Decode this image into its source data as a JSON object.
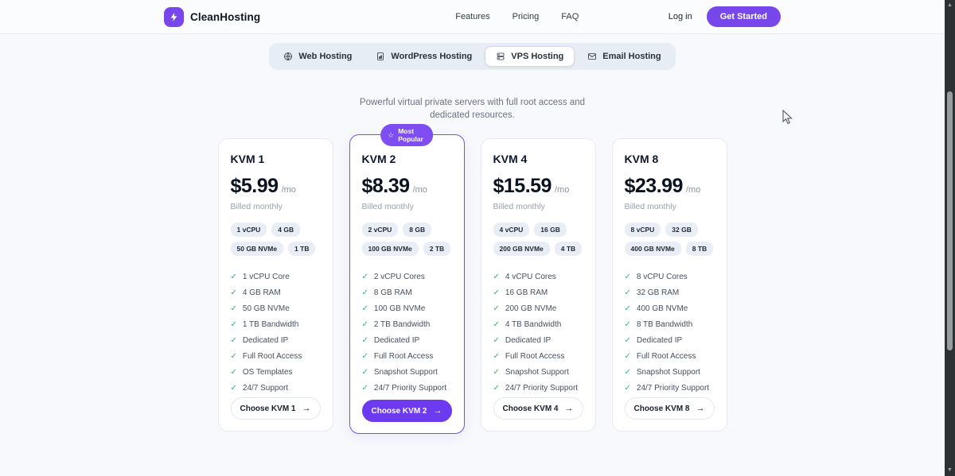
{
  "header": {
    "brand": "CleanHosting",
    "nav": [
      {
        "label": "Features"
      },
      {
        "label": "Pricing"
      },
      {
        "label": "FAQ"
      }
    ],
    "login_label": "Log in",
    "cta_label": "Get Started"
  },
  "tabs": [
    {
      "label": "Web Hosting",
      "icon": "globe-icon",
      "active": false
    },
    {
      "label": "WordPress Hosting",
      "icon": "document-icon",
      "active": false
    },
    {
      "label": "VPS Hosting",
      "icon": "server-icon",
      "active": true
    },
    {
      "label": "Email Hosting",
      "icon": "envelope-icon",
      "active": false
    }
  ],
  "subtitle": "Powerful virtual private servers with full root access and dedicated resources.",
  "popular_badge_label": "Most\nPopular",
  "plans": [
    {
      "name": "KVM 1",
      "price": "$5.99",
      "period": "/mo",
      "billing": "Billed monthly",
      "badges": [
        "1 vCPU",
        "4 GB",
        "50 GB NVMe",
        "1 TB"
      ],
      "features": [
        "1 vCPU Core",
        "4 GB RAM",
        "50 GB NVMe",
        "1 TB Bandwidth",
        "Dedicated IP",
        "Full Root Access",
        "OS Templates",
        "24/7 Support"
      ],
      "cta": "Choose KVM 1",
      "popular": false
    },
    {
      "name": "KVM 2",
      "price": "$8.39",
      "period": "/mo",
      "billing": "Billed monthly",
      "badges": [
        "2 vCPU",
        "8 GB",
        "100 GB NVMe",
        "2 TB"
      ],
      "features": [
        "2 vCPU Cores",
        "8 GB RAM",
        "100 GB NVMe",
        "2 TB Bandwidth",
        "Dedicated IP",
        "Full Root Access",
        "Snapshot Support",
        "24/7 Priority Support"
      ],
      "cta": "Choose KVM 2",
      "popular": true
    },
    {
      "name": "KVM 4",
      "price": "$15.59",
      "period": "/mo",
      "billing": "Billed monthly",
      "badges": [
        "4 vCPU",
        "16 GB",
        "200 GB NVMe",
        "4 TB"
      ],
      "features": [
        "4 vCPU Cores",
        "16 GB RAM",
        "200 GB NVMe",
        "4 TB Bandwidth",
        "Dedicated IP",
        "Full Root Access",
        "Snapshot Support",
        "24/7 Priority Support"
      ],
      "cta": "Choose KVM 4",
      "popular": false
    },
    {
      "name": "KVM 8",
      "price": "$23.99",
      "period": "/mo",
      "billing": "Billed monthly",
      "badges": [
        "8 vCPU",
        "32 GB",
        "400 GB NVMe",
        "8 TB"
      ],
      "features": [
        "8 vCPU Cores",
        "32 GB RAM",
        "400 GB NVMe",
        "8 TB Bandwidth",
        "Dedicated IP",
        "Full Root Access",
        "Snapshot Support",
        "24/7 Priority Support"
      ],
      "cta": "Choose KVM 8",
      "popular": false
    }
  ],
  "colors": {
    "accent": "#7747ec",
    "popular_border": "#7c4af0",
    "check_green": "#2bb673",
    "scrollbar_track": "#2e3133"
  }
}
